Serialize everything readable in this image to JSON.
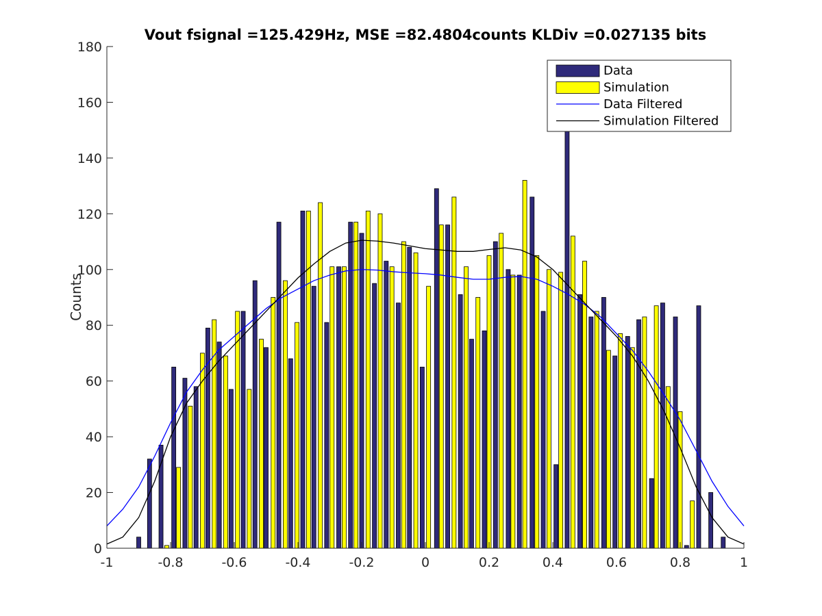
{
  "chart_data": {
    "type": "bar",
    "title": "Vout fsignal =125.429Hz, MSE =82.4804counts KLDiv =0.027135 bits",
    "xlabel": "",
    "ylabel": "Counts",
    "xlim": [
      -1,
      1
    ],
    "ylim": [
      0,
      180
    ],
    "xticks": [
      -1,
      -0.8,
      -0.6,
      -0.4,
      -0.2,
      0,
      0.2,
      0.4,
      0.6,
      0.8,
      1
    ],
    "xtick_labels": [
      "-1",
      "-0.8",
      "-0.6",
      "-0.4",
      "-0.2",
      "0",
      "0.2",
      "0.4",
      "0.6",
      "0.8",
      "1"
    ],
    "yticks": [
      0,
      20,
      40,
      60,
      80,
      100,
      120,
      140,
      160,
      180
    ],
    "ytick_labels": [
      "0",
      "20",
      "40",
      "60",
      "80",
      "100",
      "120",
      "140",
      "160",
      "180"
    ],
    "grid": false,
    "legend_position": "top-right",
    "bar_series": [
      {
        "name": "Data",
        "color": "#2f2a7a",
        "points": [
          {
            "x": -0.9,
            "y": 4
          },
          {
            "x": -0.866,
            "y": 32
          },
          {
            "x": -0.83,
            "y": 37
          },
          {
            "x": -0.79,
            "y": 65
          },
          {
            "x": -0.755,
            "y": 61
          },
          {
            "x": -0.72,
            "y": 58
          },
          {
            "x": -0.683,
            "y": 79
          },
          {
            "x": -0.647,
            "y": 74
          },
          {
            "x": -0.61,
            "y": 57
          },
          {
            "x": -0.572,
            "y": 85
          },
          {
            "x": -0.535,
            "y": 96
          },
          {
            "x": -0.5,
            "y": 72
          },
          {
            "x": -0.46,
            "y": 117
          },
          {
            "x": -0.423,
            "y": 68
          },
          {
            "x": -0.385,
            "y": 121
          },
          {
            "x": -0.35,
            "y": 94
          },
          {
            "x": -0.31,
            "y": 81
          },
          {
            "x": -0.272,
            "y": 101
          },
          {
            "x": -0.235,
            "y": 117
          },
          {
            "x": -0.2,
            "y": 113
          },
          {
            "x": -0.16,
            "y": 95
          },
          {
            "x": -0.123,
            "y": 103
          },
          {
            "x": -0.085,
            "y": 88
          },
          {
            "x": -0.05,
            "y": 108
          },
          {
            "x": -0.01,
            "y": 65
          },
          {
            "x": 0.035,
            "y": 129
          },
          {
            "x": 0.07,
            "y": 116
          },
          {
            "x": 0.11,
            "y": 91
          },
          {
            "x": 0.145,
            "y": 75
          },
          {
            "x": 0.185,
            "y": 78
          },
          {
            "x": 0.22,
            "y": 110
          },
          {
            "x": 0.26,
            "y": 100
          },
          {
            "x": 0.295,
            "y": 98
          },
          {
            "x": 0.335,
            "y": 126
          },
          {
            "x": 0.37,
            "y": 85
          },
          {
            "x": 0.41,
            "y": 30
          },
          {
            "x": 0.445,
            "y": 150
          },
          {
            "x": 0.485,
            "y": 91
          },
          {
            "x": 0.52,
            "y": 83
          },
          {
            "x": 0.56,
            "y": 90
          },
          {
            "x": 0.595,
            "y": 69
          },
          {
            "x": 0.635,
            "y": 76
          },
          {
            "x": 0.67,
            "y": 82
          },
          {
            "x": 0.71,
            "y": 25
          },
          {
            "x": 0.745,
            "y": 88
          },
          {
            "x": 0.785,
            "y": 83
          },
          {
            "x": 0.82,
            "y": 1
          },
          {
            "x": 0.858,
            "y": 87
          },
          {
            "x": 0.896,
            "y": 20
          },
          {
            "x": 0.935,
            "y": 4
          }
        ]
      },
      {
        "name": "Simulation",
        "color": "#ffff00",
        "points": [
          {
            "x": -0.812,
            "y": 1
          },
          {
            "x": -0.775,
            "y": 29
          },
          {
            "x": -0.738,
            "y": 51
          },
          {
            "x": -0.7,
            "y": 70
          },
          {
            "x": -0.663,
            "y": 82
          },
          {
            "x": -0.627,
            "y": 69
          },
          {
            "x": -0.59,
            "y": 85
          },
          {
            "x": -0.553,
            "y": 57
          },
          {
            "x": -0.515,
            "y": 75
          },
          {
            "x": -0.478,
            "y": 90
          },
          {
            "x": -0.44,
            "y": 96
          },
          {
            "x": -0.403,
            "y": 81
          },
          {
            "x": -0.367,
            "y": 121
          },
          {
            "x": -0.33,
            "y": 124
          },
          {
            "x": -0.293,
            "y": 101
          },
          {
            "x": -0.255,
            "y": 101
          },
          {
            "x": -0.218,
            "y": 117
          },
          {
            "x": -0.18,
            "y": 121
          },
          {
            "x": -0.142,
            "y": 120
          },
          {
            "x": -0.105,
            "y": 101
          },
          {
            "x": -0.068,
            "y": 110
          },
          {
            "x": -0.03,
            "y": 106
          },
          {
            "x": 0.01,
            "y": 94
          },
          {
            "x": 0.05,
            "y": 116
          },
          {
            "x": 0.09,
            "y": 126
          },
          {
            "x": 0.128,
            "y": 101
          },
          {
            "x": 0.165,
            "y": 90
          },
          {
            "x": 0.2,
            "y": 105
          },
          {
            "x": 0.238,
            "y": 113
          },
          {
            "x": 0.275,
            "y": 98
          },
          {
            "x": 0.312,
            "y": 132
          },
          {
            "x": 0.35,
            "y": 105
          },
          {
            "x": 0.388,
            "y": 100
          },
          {
            "x": 0.425,
            "y": 99
          },
          {
            "x": 0.463,
            "y": 112
          },
          {
            "x": 0.5,
            "y": 103
          },
          {
            "x": 0.538,
            "y": 85
          },
          {
            "x": 0.575,
            "y": 71
          },
          {
            "x": 0.612,
            "y": 77
          },
          {
            "x": 0.65,
            "y": 72
          },
          {
            "x": 0.688,
            "y": 83
          },
          {
            "x": 0.725,
            "y": 87
          },
          {
            "x": 0.762,
            "y": 58
          },
          {
            "x": 0.8,
            "y": 49
          },
          {
            "x": 0.838,
            "y": 17
          }
        ]
      }
    ],
    "line_series": [
      {
        "name": "Data Filtered",
        "color": "#0000ff",
        "points": [
          {
            "x": -1,
            "y": 8
          },
          {
            "x": -0.95,
            "y": 14
          },
          {
            "x": -0.9,
            "y": 22
          },
          {
            "x": -0.85,
            "y": 33
          },
          {
            "x": -0.8,
            "y": 45
          },
          {
            "x": -0.75,
            "y": 56
          },
          {
            "x": -0.7,
            "y": 64
          },
          {
            "x": -0.65,
            "y": 71
          },
          {
            "x": -0.6,
            "y": 76
          },
          {
            "x": -0.55,
            "y": 81
          },
          {
            "x": -0.5,
            "y": 86
          },
          {
            "x": -0.45,
            "y": 90
          },
          {
            "x": -0.4,
            "y": 93
          },
          {
            "x": -0.35,
            "y": 96
          },
          {
            "x": -0.3,
            "y": 98
          },
          {
            "x": -0.25,
            "y": 99.5
          },
          {
            "x": -0.2,
            "y": 100
          },
          {
            "x": -0.15,
            "y": 99.8
          },
          {
            "x": -0.1,
            "y": 99.2
          },
          {
            "x": -0.05,
            "y": 98.8
          },
          {
            "x": 0,
            "y": 98.5
          },
          {
            "x": 0.05,
            "y": 98
          },
          {
            "x": 0.1,
            "y": 97.2
          },
          {
            "x": 0.15,
            "y": 96.5
          },
          {
            "x": 0.2,
            "y": 96.5
          },
          {
            "x": 0.25,
            "y": 97.2
          },
          {
            "x": 0.3,
            "y": 97.5
          },
          {
            "x": 0.35,
            "y": 96.5
          },
          {
            "x": 0.4,
            "y": 94
          },
          {
            "x": 0.45,
            "y": 91
          },
          {
            "x": 0.5,
            "y": 87.5
          },
          {
            "x": 0.55,
            "y": 83
          },
          {
            "x": 0.6,
            "y": 77
          },
          {
            "x": 0.65,
            "y": 71
          },
          {
            "x": 0.7,
            "y": 63.5
          },
          {
            "x": 0.75,
            "y": 55
          },
          {
            "x": 0.8,
            "y": 46
          },
          {
            "x": 0.85,
            "y": 35
          },
          {
            "x": 0.9,
            "y": 24
          },
          {
            "x": 0.95,
            "y": 15
          },
          {
            "x": 1,
            "y": 8
          }
        ]
      },
      {
        "name": "Simulation Filtered",
        "color": "#000000",
        "points": [
          {
            "x": -1,
            "y": 1.5
          },
          {
            "x": -0.95,
            "y": 4
          },
          {
            "x": -0.9,
            "y": 11
          },
          {
            "x": -0.85,
            "y": 24
          },
          {
            "x": -0.8,
            "y": 40
          },
          {
            "x": -0.75,
            "y": 52
          },
          {
            "x": -0.7,
            "y": 60
          },
          {
            "x": -0.65,
            "y": 67
          },
          {
            "x": -0.6,
            "y": 73
          },
          {
            "x": -0.55,
            "y": 79
          },
          {
            "x": -0.5,
            "y": 85
          },
          {
            "x": -0.45,
            "y": 91
          },
          {
            "x": -0.4,
            "y": 97
          },
          {
            "x": -0.35,
            "y": 102
          },
          {
            "x": -0.3,
            "y": 106.5
          },
          {
            "x": -0.25,
            "y": 109.5
          },
          {
            "x": -0.2,
            "y": 110.5
          },
          {
            "x": -0.15,
            "y": 110.2
          },
          {
            "x": -0.1,
            "y": 109.5
          },
          {
            "x": -0.05,
            "y": 108.5
          },
          {
            "x": 0,
            "y": 107.5
          },
          {
            "x": 0.05,
            "y": 107
          },
          {
            "x": 0.1,
            "y": 106.5
          },
          {
            "x": 0.15,
            "y": 106.5
          },
          {
            "x": 0.2,
            "y": 107.2
          },
          {
            "x": 0.25,
            "y": 107.8
          },
          {
            "x": 0.3,
            "y": 107
          },
          {
            "x": 0.35,
            "y": 104.5
          },
          {
            "x": 0.4,
            "y": 100
          },
          {
            "x": 0.45,
            "y": 94
          },
          {
            "x": 0.5,
            "y": 88
          },
          {
            "x": 0.55,
            "y": 82
          },
          {
            "x": 0.6,
            "y": 76
          },
          {
            "x": 0.65,
            "y": 69
          },
          {
            "x": 0.7,
            "y": 60
          },
          {
            "x": 0.75,
            "y": 49
          },
          {
            "x": 0.8,
            "y": 36
          },
          {
            "x": 0.85,
            "y": 22
          },
          {
            "x": 0.9,
            "y": 11
          },
          {
            "x": 0.95,
            "y": 4
          },
          {
            "x": 1,
            "y": 1.5
          }
        ]
      }
    ]
  }
}
